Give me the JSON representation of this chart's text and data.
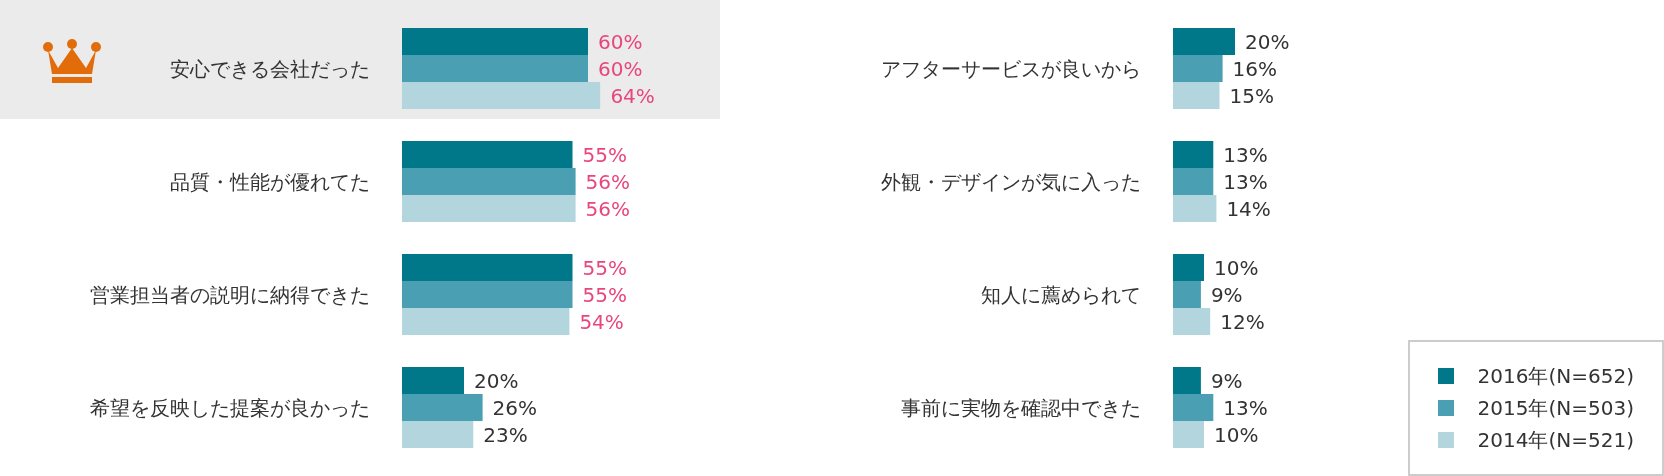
{
  "chart_data": [
    {
      "type": "bar",
      "orientation": "horizontal",
      "categories": [
        "安心できる会社だった",
        "品質・性能が優れてた",
        "営業担当者の説明に納得できた",
        "希望を反映した提案が良かった"
      ],
      "tick_labels": "y",
      "legend": false,
      "bands": [
        {
          "axis": "y",
          "from": "安心できる会社だった",
          "to": "安心できる会社だった",
          "color": "#ebebeb"
        }
      ],
      "series": [
        {
          "color": "#00788a",
          "values": [
            60,
            55,
            55,
            20
          ],
          "value_labels": [
            "60%",
            "55%",
            "55%",
            "20%"
          ]
        },
        {
          "color": "#4a9fb3",
          "values": [
            60,
            56,
            55,
            26
          ],
          "value_labels": [
            "60%",
            "56%",
            "55%",
            "26%"
          ]
        },
        {
          "color": "#b3d6de",
          "values": [
            64,
            56,
            54,
            23
          ],
          "value_labels": [
            "64%",
            "56%",
            "54%",
            "23%"
          ]
        }
      ]
    },
    {
      "type": "bar",
      "orientation": "horizontal",
      "categories": [
        "アフターサービスが良いから",
        "外観・デザインが気に入った",
        "知人に薦められて",
        "事前に実物を確認中できた"
      ],
      "tick_labels": "y",
      "legend": "bottom right",
      "series": [
        {
          "name": "2016年(N=652)",
          "color": "#00788a",
          "values": [
            20,
            13,
            10,
            9
          ],
          "value_labels": [
            "20%",
            "13%",
            "10%",
            "9%"
          ]
        },
        {
          "name": "2015年(N=503)",
          "color": "#4a9fb3",
          "values": [
            16,
            13,
            9,
            13
          ],
          "value_labels": [
            "16%",
            "13%",
            "9%",
            "13%"
          ]
        },
        {
          "name": "2014年(N=521)",
          "color": "#b3d6de",
          "values": [
            15,
            14,
            12,
            10
          ],
          "value_labels": [
            "15%",
            "14%",
            "12%",
            "10%"
          ]
        }
      ]
    }
  ]
}
